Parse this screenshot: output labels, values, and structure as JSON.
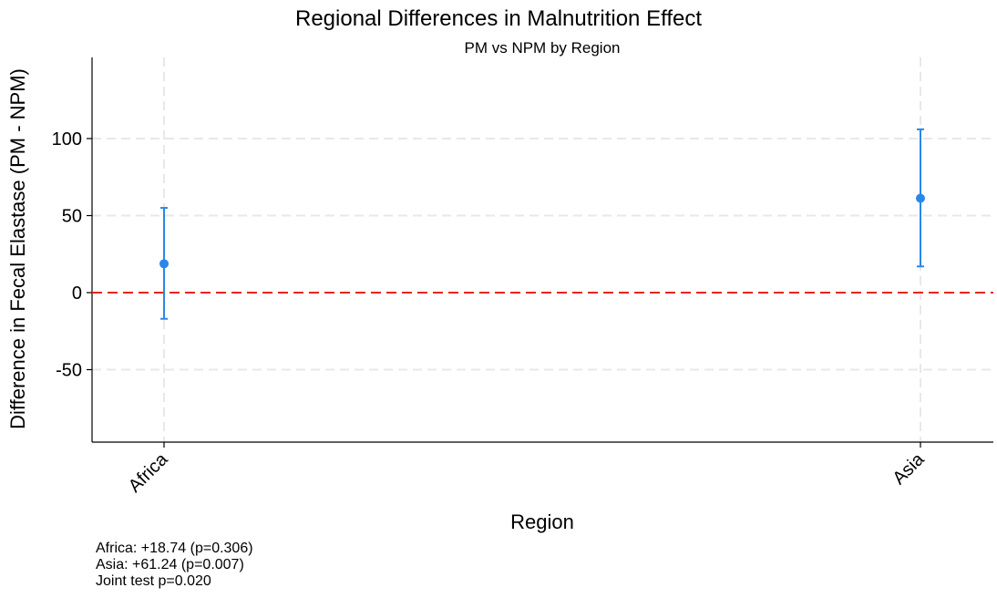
{
  "chart_data": {
    "type": "scatter",
    "title": "Regional Differences in Malnutrition Effect",
    "subtitle": "PM vs NPM by Region",
    "xlabel": "Region",
    "ylabel": "Difference in Fecal Elastase (PM - NPM)",
    "categories": [
      "Africa",
      "Asia"
    ],
    "series": [
      {
        "values": [
          18.74,
          61.24
        ],
        "ci_lower": [
          -17,
          17
        ],
        "ci_upper": [
          55,
          106
        ]
      }
    ],
    "ylim": [
      -95,
      150
    ],
    "yticks": [
      -50,
      0,
      50,
      100
    ],
    "reference_line": 0,
    "grid": true,
    "notes": [
      "Africa: +18.74 (p=0.306)",
      "Asia: +61.24 (p=0.007)",
      "Joint test p=0.020"
    ]
  },
  "colors": {
    "point": "#2a87ea",
    "reference_line": "#e8231f",
    "grid": "#e8e8e8",
    "axis": "#000000"
  }
}
